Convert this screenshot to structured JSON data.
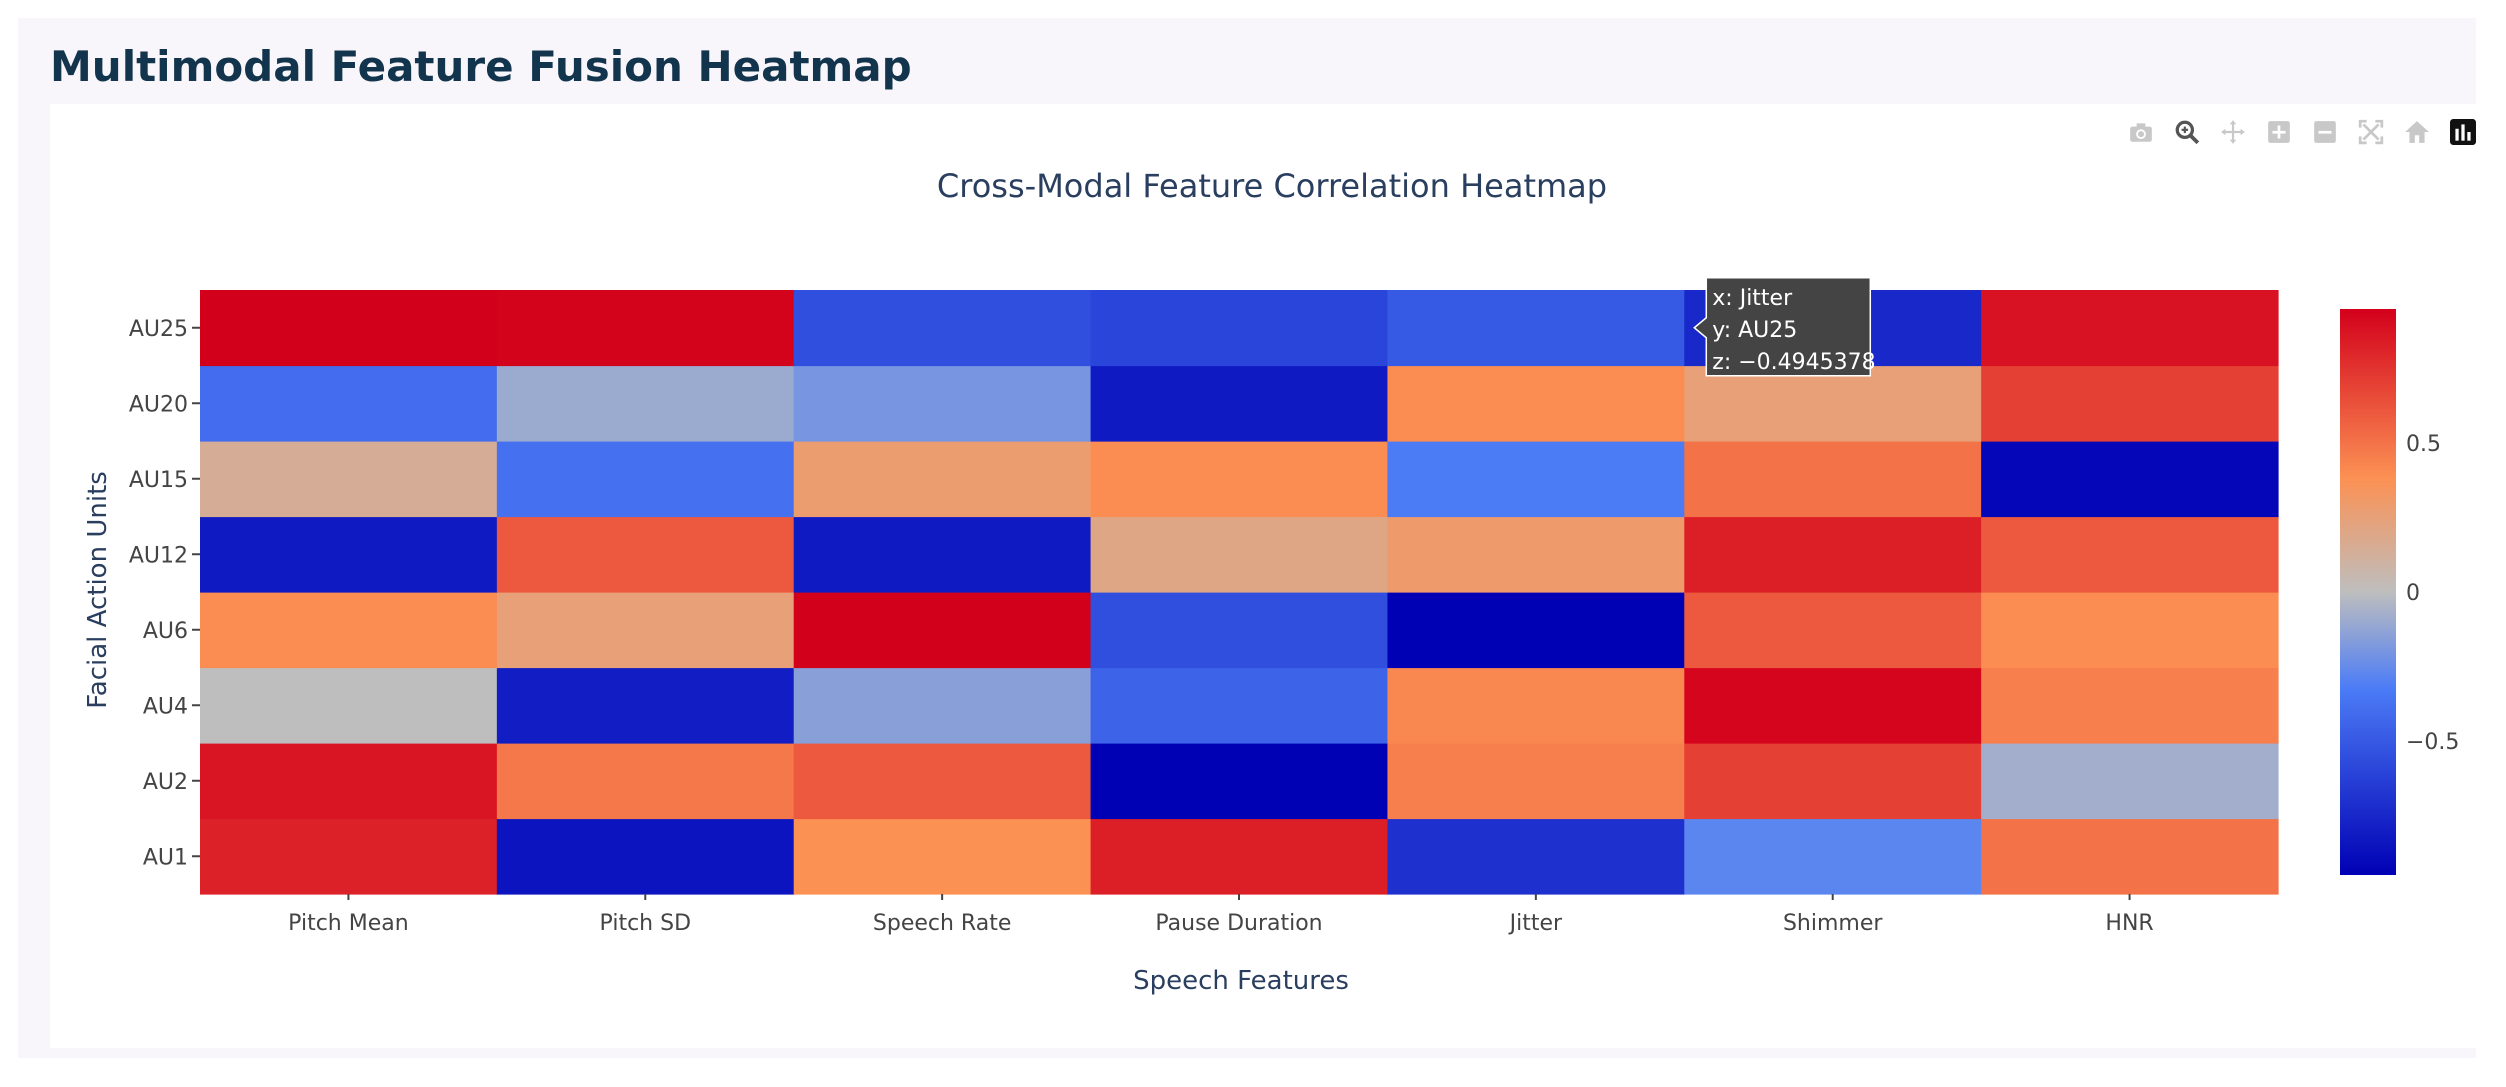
{
  "page": {
    "title": "Multimodal Feature Fusion Heatmap"
  },
  "modebar": {
    "buttons": [
      {
        "name": "camera-icon",
        "label": "Download plot as a png"
      },
      {
        "name": "zoom-icon",
        "label": "Zoom"
      },
      {
        "name": "pan-icon",
        "label": "Pan"
      },
      {
        "name": "zoom-in-icon",
        "label": "Zoom in"
      },
      {
        "name": "zoom-out-icon",
        "label": "Zoom out"
      },
      {
        "name": "autoscale-icon",
        "label": "Autoscale"
      },
      {
        "name": "home-icon",
        "label": "Reset axes"
      },
      {
        "name": "plotly-logo-icon",
        "label": "Produced with Plotly"
      }
    ]
  },
  "colors": {
    "text": "#444444",
    "title_text": "#2a3f5f",
    "colorscale": [
      [
        0.0,
        "#0000b4"
      ],
      [
        0.33,
        "#4c7cf6"
      ],
      [
        0.5,
        "#bebebe"
      ],
      [
        0.7,
        "#fc9154"
      ],
      [
        1.0,
        "#d3001b"
      ]
    ]
  },
  "chart_data": {
    "type": "heatmap",
    "title": "Cross-Modal Feature Correlation Heatmap",
    "xlabel": "Speech Features",
    "ylabel": "Facial Action Units",
    "x": [
      "Pitch Mean",
      "Pitch SD",
      "Speech Rate",
      "Pause Duration",
      "Jitter",
      "Shimmer",
      "HNR"
    ],
    "y": [
      "AU1",
      "AU2",
      "AU4",
      "AU6",
      "AU12",
      "AU15",
      "AU20",
      "AU25"
    ],
    "z": [
      [
        0.82,
        -0.85,
        0.38,
        0.83,
        -0.7,
        -0.28,
        0.5
      ],
      [
        0.87,
        0.48,
        0.6,
        -0.95,
        0.45,
        0.7,
        -0.08
      ],
      [
        0.0,
        -0.8,
        -0.15,
        -0.45,
        0.42,
        0.93,
        0.45
      ],
      [
        0.4,
        0.25,
        0.97,
        -0.55,
        -0.95,
        0.6,
        0.4
      ],
      [
        -0.82,
        0.6,
        -0.82,
        0.2,
        0.3,
        0.83,
        0.6
      ],
      [
        0.14,
        -0.38,
        0.28,
        0.4,
        -0.33,
        0.5,
        -0.92
      ],
      [
        -0.4,
        -0.1,
        -0.2,
        -0.82,
        0.4,
        0.25,
        0.7
      ],
      [
        0.98,
        0.94,
        -0.55,
        -0.6,
        -0.4946,
        -0.75,
        0.88
      ]
    ],
    "zlim": [
      -0.95,
      0.95
    ],
    "colorbar": {
      "ticks": [
        -0.5,
        0,
        0.5
      ],
      "tick_labels": [
        "−0.5",
        "0",
        "0.5"
      ]
    },
    "hover": {
      "x_label": "x: Jitter",
      "y_label": "y: AU25",
      "z_label": "z: −0.4945378",
      "x_index": 4,
      "y_index": 7
    }
  }
}
